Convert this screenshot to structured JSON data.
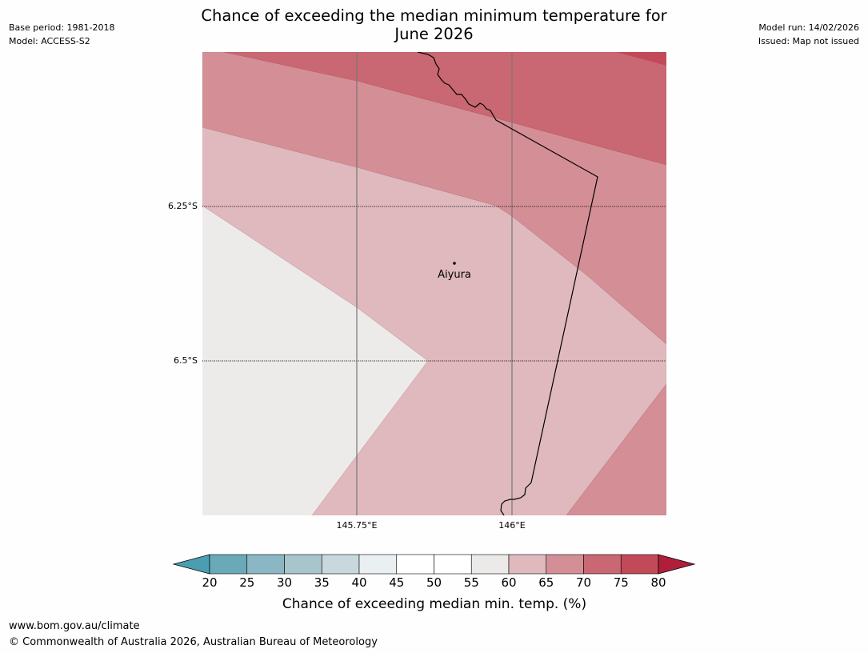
{
  "header": {
    "title_line1": "Chance of exceeding the median minimum temperature for",
    "title_line2": "June 2026",
    "base_period": "Base period: 1981-2018",
    "model": "Model: ACCESS-S2",
    "model_run": "Model run: 14/02/2026",
    "issued": "Issued: Map not issued"
  },
  "map": {
    "lat_labels": [
      "6.25°S",
      "6.5°S"
    ],
    "lon_labels": [
      "145.75°E",
      "146°E"
    ],
    "place": "Aiyura",
    "zone_colors": {
      "55-60": "#edebe9",
      "60-65": "#dfb9bd",
      "65-70": "#d48e96",
      "70-75": "#c96872",
      "75-80": "#c24a58"
    }
  },
  "colorbar": {
    "ticks": [
      "20",
      "25",
      "30",
      "35",
      "40",
      "45",
      "50",
      "55",
      "60",
      "65",
      "70",
      "75",
      "80"
    ],
    "colors": [
      "#6aa9b8",
      "#8bb6c3",
      "#a8c5cb",
      "#c8d8dc",
      "#eaf0f2",
      "#ffffff",
      "#ffffff",
      "#eceae8",
      "#dfb9bd",
      "#d48e96",
      "#c96872",
      "#c24a58"
    ],
    "under_color": "#4a9eb0",
    "over_color": "#b01f3a",
    "label": "Chance of exceeding median min. temp. (%)"
  },
  "footer": {
    "url": "www.bom.gov.au/climate",
    "copyright": "© Commonwealth of Australia 2026, Australian Bureau of Meteorology"
  }
}
